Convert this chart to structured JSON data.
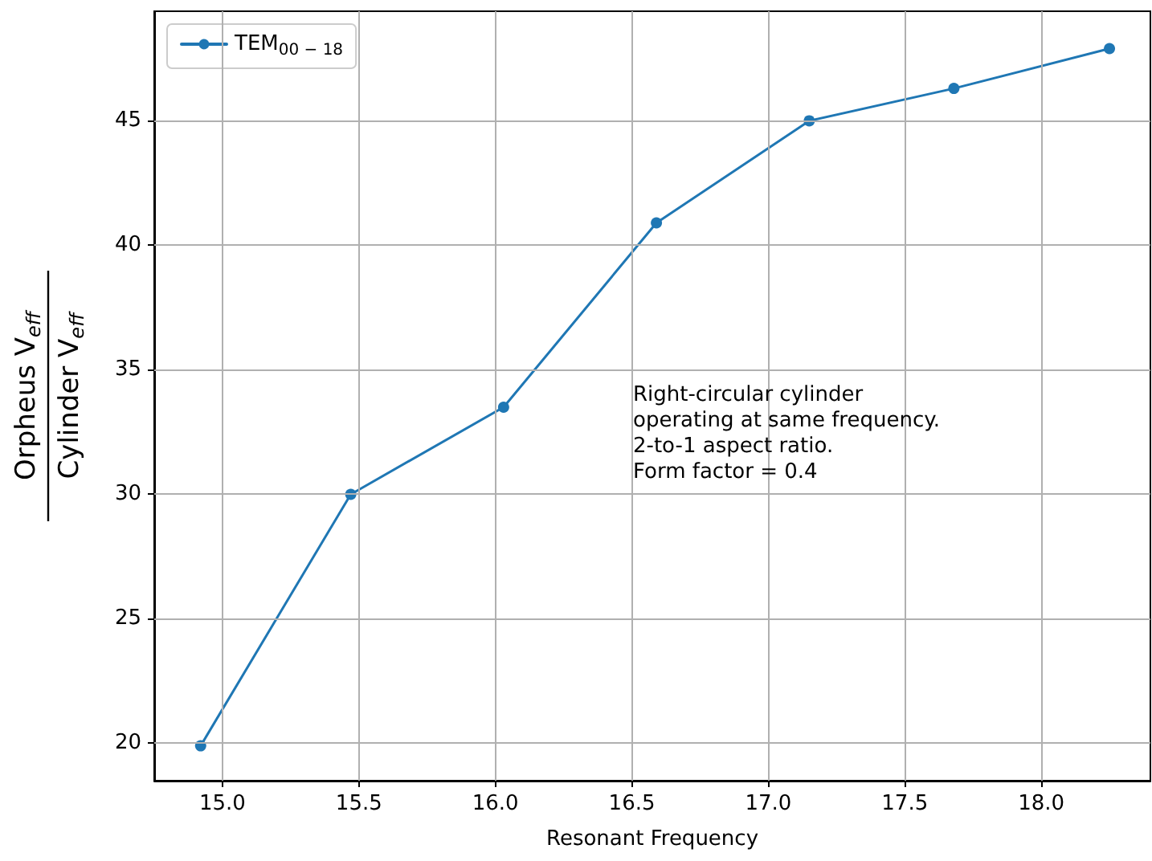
{
  "chart_data": {
    "type": "line",
    "xlabel": "Resonant Frequency",
    "ylabel": "Orpheus V$_{eff}$\nCylinder V$_{eff}$",
    "x": [
      14.92,
      15.47,
      16.03,
      16.59,
      17.15,
      17.68,
      18.25
    ],
    "series": [
      {
        "name": "TEM$_{00 − 18}$",
        "color": "#1f77b4",
        "values": [
          19.9,
          30.0,
          33.5,
          40.9,
          45.0,
          46.3,
          47.9
        ]
      }
    ],
    "xlim": [
      14.75,
      18.4
    ],
    "xticks": [
      {
        "value": 15,
        "label": "15.0"
      },
      {
        "value": 15.5,
        "label": "15.5"
      },
      {
        "value": 16,
        "label": "16.0"
      },
      {
        "value": 16.5,
        "label": "16.5"
      },
      {
        "value": 17,
        "label": "17.0"
      },
      {
        "value": 17.5,
        "label": "17.5"
      },
      {
        "value": 18,
        "label": "18.0"
      }
    ],
    "ylim": [
      18.5,
      49.4
    ],
    "yticks": [
      20,
      25,
      30,
      35,
      40,
      45
    ],
    "annotations": [
      "Right-circular cylinder\noperating at same frequency.\n2-to-1 aspect ratio.\nForm factor = 0.4"
    ],
    "grid": true,
    "legend": "top left",
    "marker": "circle",
    "line_style": "solid"
  }
}
